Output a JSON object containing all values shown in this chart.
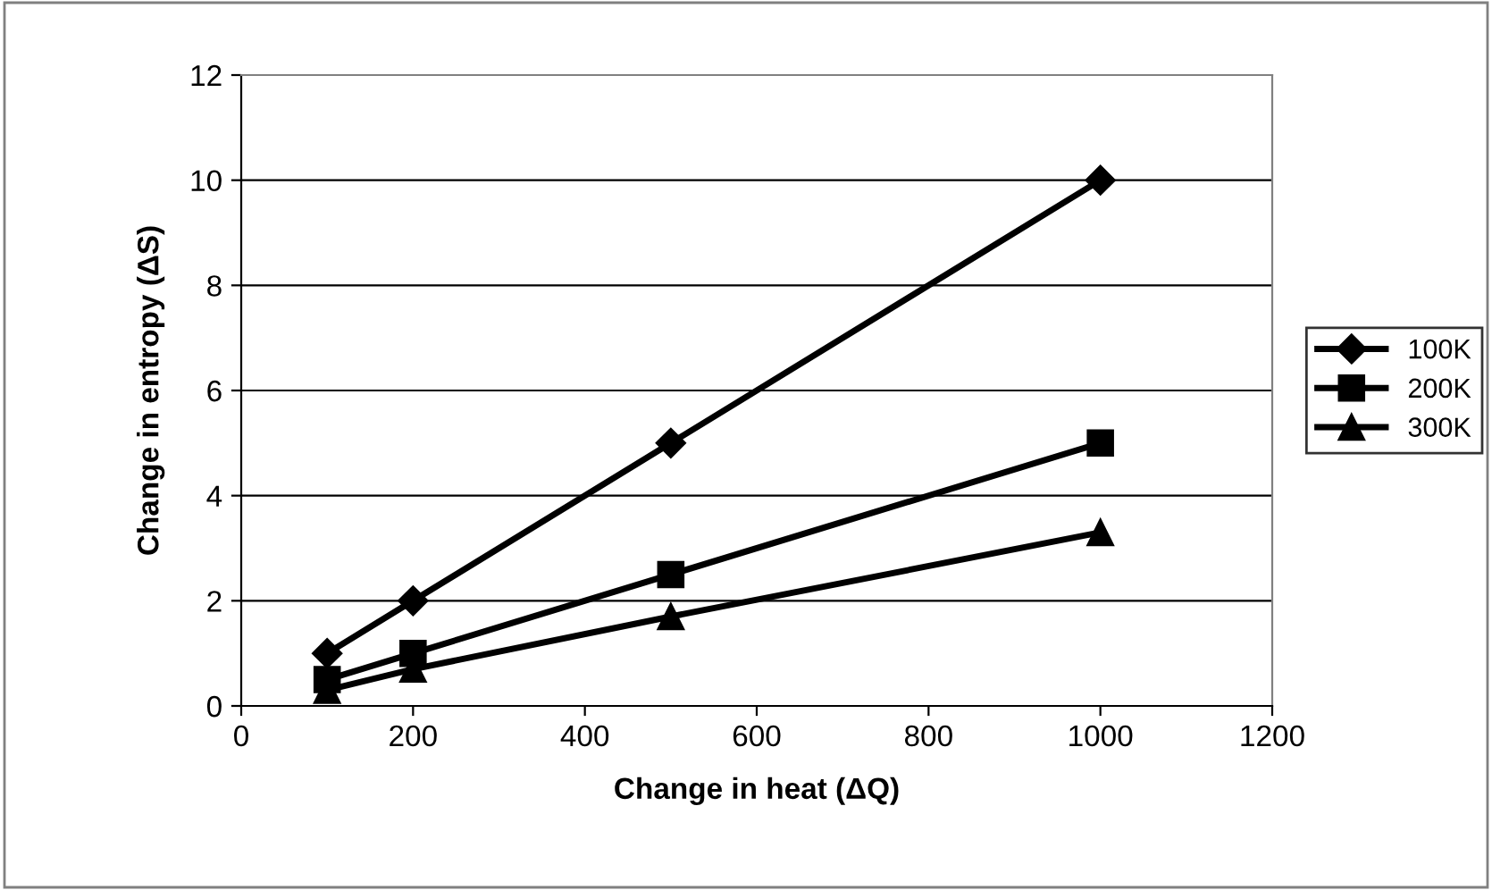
{
  "chart_data": {
    "type": "line",
    "xlabel": "Change in heat (ΔQ)",
    "ylabel": "Change in entropy (ΔS)",
    "x": [
      100,
      200,
      500,
      1000
    ],
    "series": [
      {
        "name": "100K",
        "color": "#000000",
        "marker": "diamond",
        "values": [
          1,
          2,
          5,
          10
        ]
      },
      {
        "name": "200K",
        "color": "#000000",
        "marker": "square",
        "values": [
          0.5,
          1,
          2.5,
          5
        ]
      },
      {
        "name": "300K",
        "color": "#000000",
        "marker": "triangle",
        "values": [
          0.3,
          0.7,
          1.7,
          3.3
        ]
      }
    ],
    "xlim": [
      0,
      1200
    ],
    "xticks": [
      0,
      200,
      400,
      600,
      800,
      1000,
      1200
    ],
    "ylim": [
      0,
      12
    ],
    "yticks": [
      0,
      2,
      4,
      6,
      8,
      10,
      12
    ],
    "grid": "y",
    "legend": "right",
    "line_style": "solid"
  }
}
